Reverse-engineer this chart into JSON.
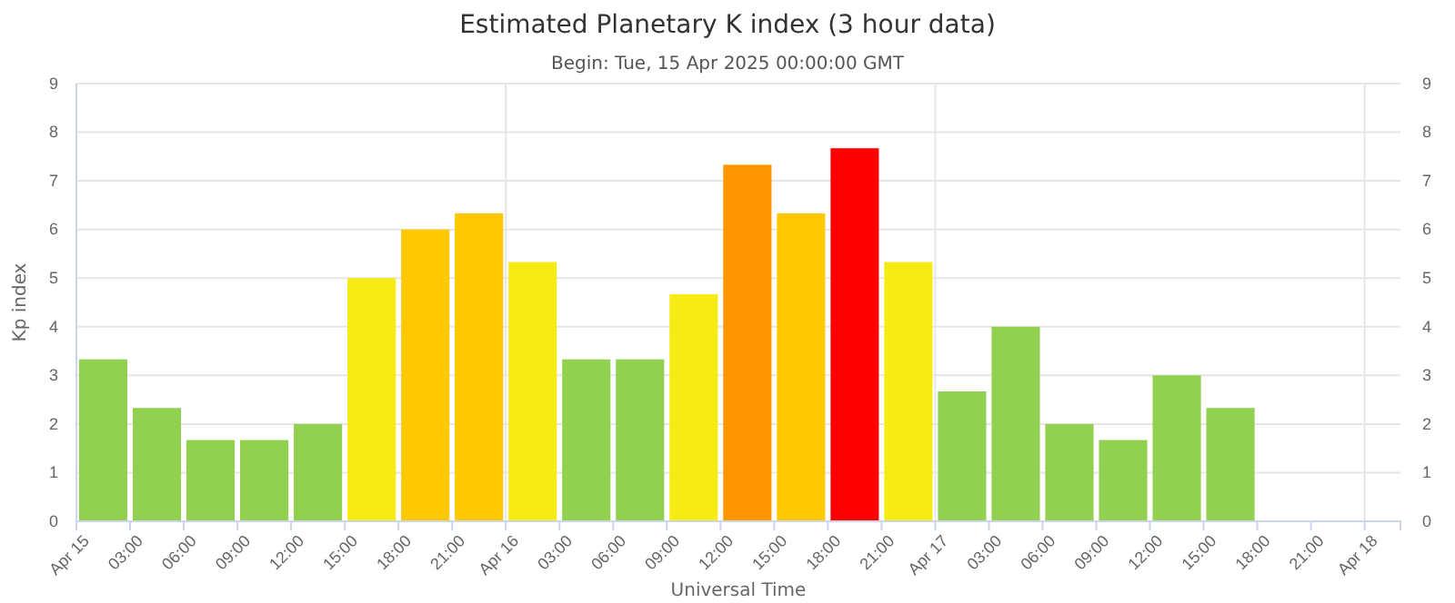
{
  "chart_data": {
    "type": "bar",
    "title": "Estimated Planetary K index (3 hour data)",
    "subtitle": "Begin: Tue, 15 Apr 2025 00:00:00 GMT",
    "xlabel": "Universal Time",
    "ylabel": "Kp index",
    "x": [
      "2025-04-15T01:30",
      "2025-04-15T04:30",
      "2025-04-15T07:30",
      "2025-04-15T10:30",
      "2025-04-15T13:30",
      "2025-04-15T16:30",
      "2025-04-15T19:30",
      "2025-04-15T22:30",
      "2025-04-16T01:30",
      "2025-04-16T04:30",
      "2025-04-16T07:30",
      "2025-04-16T10:30",
      "2025-04-16T13:30",
      "2025-04-16T16:30",
      "2025-04-16T19:30",
      "2025-04-16T22:30",
      "2025-04-17T01:30",
      "2025-04-17T04:30",
      "2025-04-17T07:30",
      "2025-04-17T10:30",
      "2025-04-17T13:30",
      "2025-04-17T16:30"
    ],
    "values": [
      3.33,
      2.33,
      1.67,
      1.67,
      2,
      5,
      6,
      6.33,
      5.33,
      3.33,
      3.33,
      4.67,
      7.33,
      6.33,
      7.67,
      5.33,
      2.67,
      4,
      2,
      1.67,
      3,
      2.33
    ],
    "colors": [
      "#92d050",
      "#92d050",
      "#92d050",
      "#92d050",
      "#92d050",
      "#f6eb14",
      "#ffc800",
      "#ffc800",
      "#f6eb14",
      "#92d050",
      "#92d050",
      "#f6eb14",
      "#ff9600",
      "#ffc800",
      "#ff0000",
      "#f6eb14",
      "#92d050",
      "#92d050",
      "#92d050",
      "#92d050",
      "#92d050",
      "#92d050"
    ],
    "xlim": [
      "2025-04-15T00:00",
      "2025-04-18T02:00"
    ],
    "xticks": [
      {
        "value": "2025-04-15T00:00",
        "label": "Apr 15"
      },
      {
        "value": "2025-04-15T03:00",
        "label": "03:00"
      },
      {
        "value": "2025-04-15T06:00",
        "label": "06:00"
      },
      {
        "value": "2025-04-15T09:00",
        "label": "09:00"
      },
      {
        "value": "2025-04-15T12:00",
        "label": "12:00"
      },
      {
        "value": "2025-04-15T15:00",
        "label": "15:00"
      },
      {
        "value": "2025-04-15T18:00",
        "label": "18:00"
      },
      {
        "value": "2025-04-15T21:00",
        "label": "21:00"
      },
      {
        "value": "2025-04-16T00:00",
        "label": "Apr 16"
      },
      {
        "value": "2025-04-16T03:00",
        "label": "03:00"
      },
      {
        "value": "2025-04-16T06:00",
        "label": "06:00"
      },
      {
        "value": "2025-04-16T09:00",
        "label": "09:00"
      },
      {
        "value": "2025-04-16T12:00",
        "label": "12:00"
      },
      {
        "value": "2025-04-16T15:00",
        "label": "15:00"
      },
      {
        "value": "2025-04-16T18:00",
        "label": "18:00"
      },
      {
        "value": "2025-04-16T21:00",
        "label": "21:00"
      },
      {
        "value": "2025-04-17T00:00",
        "label": "Apr 17"
      },
      {
        "value": "2025-04-17T03:00",
        "label": "03:00"
      },
      {
        "value": "2025-04-17T06:00",
        "label": "06:00"
      },
      {
        "value": "2025-04-17T09:00",
        "label": "09:00"
      },
      {
        "value": "2025-04-17T12:00",
        "label": "12:00"
      },
      {
        "value": "2025-04-17T15:00",
        "label": "15:00"
      },
      {
        "value": "2025-04-17T18:00",
        "label": "18:00"
      },
      {
        "value": "2025-04-17T21:00",
        "label": "21:00"
      },
      {
        "value": "2025-04-18T00:00",
        "label": "Apr 18"
      }
    ],
    "ylim": [
      0,
      9
    ],
    "yticks": [
      0,
      1,
      2,
      3,
      4,
      5,
      6,
      7,
      8,
      9
    ],
    "y2lim": [
      0,
      9
    ],
    "y2ticks": [
      0,
      1,
      2,
      3,
      4,
      5,
      6,
      7,
      8,
      9
    ],
    "grid": "y",
    "ref_lines": [
      {
        "axis": "x",
        "value": "2025-04-16T00:00",
        "color": "#e6e6e6"
      },
      {
        "axis": "x",
        "value": "2025-04-17T00:00",
        "color": "#e6e6e6"
      },
      {
        "axis": "x",
        "value": "2025-04-18T00:00",
        "color": "#e6e6e6"
      }
    ]
  }
}
